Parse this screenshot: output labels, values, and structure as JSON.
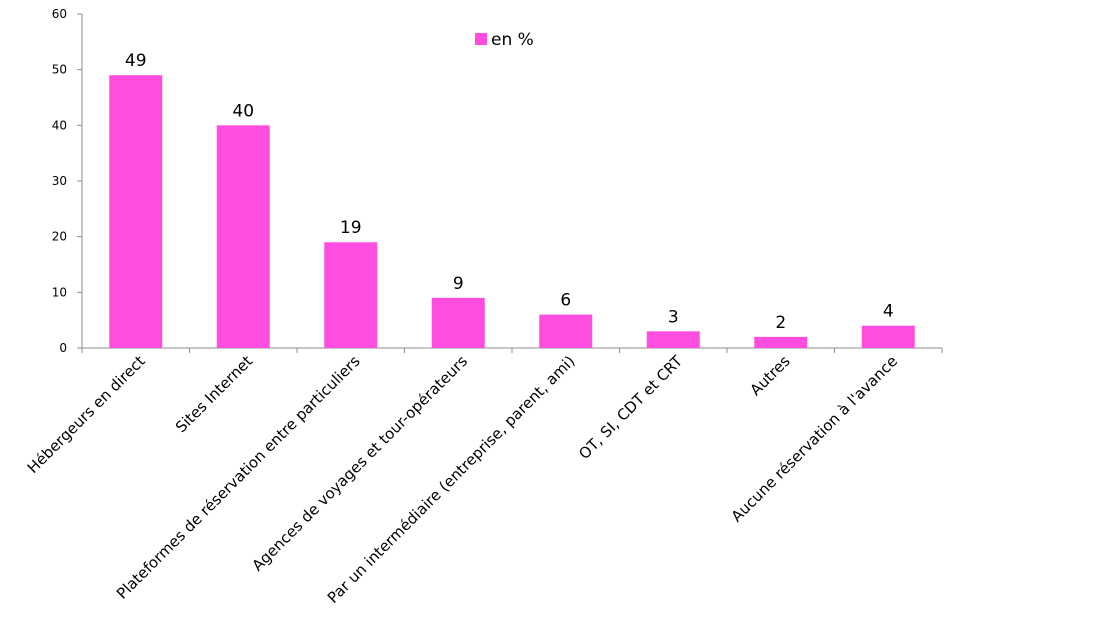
{
  "chart_data": {
    "type": "bar",
    "categories": [
      "Hébergeurs en direct",
      "Sites Internet",
      "Plateformes de réservation entre particuliers",
      "Agences de voyages et tour-opérateurs",
      "Par un intermédiaire (entreprise, parent, ami)",
      "OT, SI, CDT et CRT",
      "Autres",
      "Aucune réservation à l'avance"
    ],
    "series": [
      {
        "name": "en %",
        "values": [
          49,
          40,
          19,
          9,
          6,
          3,
          2,
          4
        ],
        "color": "#FF4DE0"
      }
    ],
    "ylim": [
      0,
      60
    ],
    "yticks": [
      0,
      10,
      20,
      30,
      40,
      50,
      60
    ],
    "grid": false,
    "legend_position": "top-center",
    "data_labels": [
      "49",
      "40",
      "19",
      "9",
      "6",
      "3",
      "2",
      "4"
    ]
  }
}
